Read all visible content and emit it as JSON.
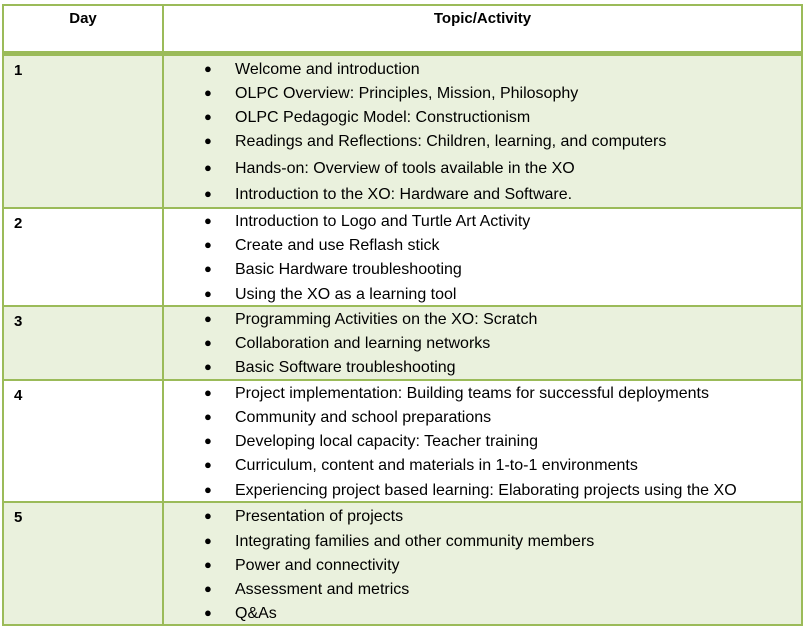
{
  "table": {
    "header": {
      "day": "Day",
      "topic": "Topic/Activity"
    },
    "rows": [
      {
        "day": "1",
        "items": [
          "Welcome and introduction",
          "OLPC Overview: Principles, Mission, Philosophy",
          "OLPC Pedagogic Model: Constructionism",
          "Readings and Reflections: Children, learning, and computers",
          "Hands-on: Overview of tools available in the XO",
          "Introduction to the XO: Hardware and Software."
        ]
      },
      {
        "day": "2",
        "items": [
          "Introduction to Logo and Turtle Art Activity",
          "Create and use Reflash stick",
          "Basic Hardware troubleshooting",
          "Using the XO as a learning tool"
        ]
      },
      {
        "day": "3",
        "items": [
          "Programming Activities on the XO: Scratch",
          "Collaboration and learning networks",
          "Basic Software troubleshooting"
        ]
      },
      {
        "day": "4",
        "items": [
          "Project implementation: Building teams for successful deployments",
          "Community and school preparations",
          "Developing local capacity: Teacher training",
          "Curriculum, content and materials in 1-to-1 environments",
          "Experiencing project based learning: Elaborating projects using the XO"
        ]
      },
      {
        "day": "5",
        "items": [
          "Presentation of projects",
          "Integrating families and other community members",
          "Power and connectivity",
          "Assessment and metrics",
          "Q&As"
        ]
      }
    ]
  }
}
